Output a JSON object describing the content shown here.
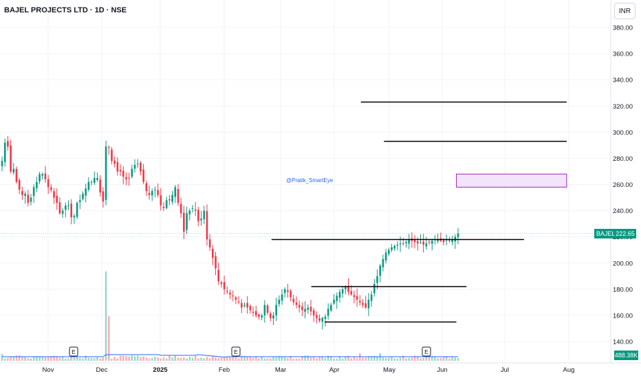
{
  "header": {
    "title": "BAJEL PROJECTS LTD · 1D · NSE",
    "currency": "INR"
  },
  "watermark": "@Pratik_SmartEye",
  "last_price": {
    "symbol": "BAJEL",
    "value": "222.65",
    "volume": "488.38K"
  },
  "colors": {
    "up": "#089981",
    "down": "#f23645",
    "level_line": "#000000",
    "box_fill": "#f2e5fb",
    "box_border": "#9c27b0"
  },
  "chart_data": {
    "type": "candlestick",
    "y_ticks": [
      "380.00",
      "360.00",
      "340.00",
      "320.00",
      "300.00",
      "280.00",
      "260.00",
      "240.00",
      "220.00",
      "200.00",
      "180.00",
      "160.00",
      "140.00"
    ],
    "ylim": [
      136,
      392
    ],
    "x_labels": [
      "Nov",
      "Dec",
      "2025",
      "Feb",
      "Mar",
      "Apr",
      "May",
      "Jun",
      "Jul",
      "Aug"
    ],
    "earnings_markers": [
      "E",
      "E",
      "E"
    ],
    "horizontal_levels": [
      {
        "price": 323,
        "from": "2025-03-16",
        "to": "2025-06-30"
      },
      {
        "price": 293,
        "from": "2025-03-29",
        "to": "2025-06-30"
      },
      {
        "price": 218,
        "from": "2025-01-27",
        "to": "2025-06-10"
      },
      {
        "price": 182,
        "from": "2025-02-17",
        "to": "2025-05-13"
      },
      {
        "price": 155,
        "from": "2025-02-24",
        "to": "2025-05-08"
      }
    ],
    "target_zone": {
      "from": "2025-05-08",
      "to": "2025-06-30",
      "low": 258,
      "high": 268
    },
    "last_close": 222.65,
    "closes": [
      278,
      292,
      289,
      270,
      272,
      262,
      256,
      252,
      253,
      246,
      250,
      258,
      262,
      268,
      268,
      264,
      258,
      256,
      250,
      246,
      238,
      240,
      244,
      244,
      235,
      236,
      246,
      248,
      253,
      257,
      262,
      262,
      265,
      265,
      254,
      247,
      289,
      288,
      278,
      276,
      270,
      270,
      266,
      264,
      265,
      272,
      275,
      276,
      270,
      262,
      255,
      252,
      255,
      256,
      252,
      244,
      242,
      248,
      248,
      252,
      258,
      246,
      238,
      224,
      238,
      240,
      242,
      240,
      232,
      234,
      240,
      218,
      212,
      204,
      196,
      186,
      184,
      180,
      178,
      176,
      175,
      172,
      170,
      166,
      168,
      166,
      164,
      162,
      160,
      159,
      160,
      168,
      162,
      158,
      160,
      168,
      172,
      176,
      180,
      178,
      174,
      170,
      168,
      166,
      164,
      165,
      166,
      163,
      160,
      158,
      156,
      158,
      159,
      165,
      168,
      172,
      175,
      178,
      180,
      182,
      178,
      176,
      174,
      172,
      170,
      168,
      166,
      172,
      176,
      184,
      190,
      198,
      203,
      208,
      210,
      212,
      213,
      214,
      215,
      215,
      216,
      218,
      217,
      216,
      215,
      216,
      214,
      215,
      216,
      217,
      218,
      218,
      217,
      216,
      218,
      217,
      218,
      220,
      222.65
    ]
  }
}
